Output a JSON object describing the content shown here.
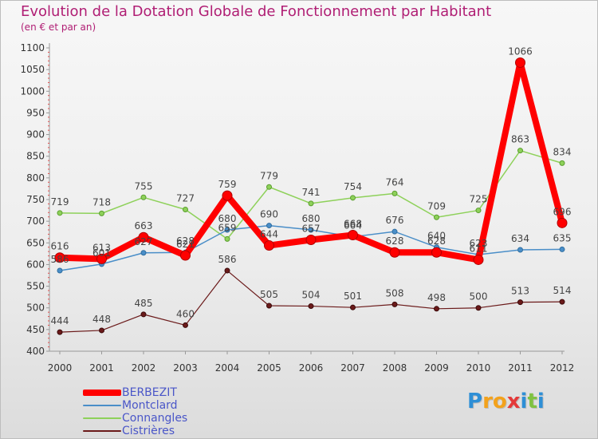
{
  "title": "Evolution de la Dotation Globale de Fonctionnement par Habitant",
  "subtitle": "(en € et par an)",
  "brand": {
    "text": "Proxiti",
    "letters": [
      {
        "ch": "P",
        "color": "#2e8fd6"
      },
      {
        "ch": "r",
        "color": "#f3a21c"
      },
      {
        "ch": "o",
        "color": "#f3a21c"
      },
      {
        "ch": "x",
        "color": "#e43a3a"
      },
      {
        "ch": "i",
        "color": "#2e8fd6"
      },
      {
        "ch": "t",
        "color": "#7fc241"
      },
      {
        "ch": "i",
        "color": "#2e8fd6"
      }
    ]
  },
  "chart_data": {
    "type": "line",
    "x": [
      "2000",
      "2001",
      "2002",
      "2003",
      "2004",
      "2005",
      "2006",
      "2007",
      "2008",
      "2009",
      "2010",
      "2011",
      "2012"
    ],
    "ylim": [
      400,
      1100
    ],
    "yticks": [
      400,
      450,
      500,
      550,
      600,
      650,
      700,
      750,
      800,
      850,
      900,
      950,
      1000,
      1050,
      1100
    ],
    "grid": false,
    "legend": "bottom-left",
    "series": [
      {
        "name": "BERBEZIT",
        "color": "#ff0000",
        "values": [
          616,
          613,
          663,
          621,
          759,
          644,
          657,
          668,
          628,
          628,
          611,
          1066,
          696
        ]
      },
      {
        "name": "Montclard",
        "color": "#4a8ec8",
        "values": [
          586,
          601,
          627,
          628,
          680,
          690,
          680,
          664,
          676,
          640,
          623,
          634,
          635
        ]
      },
      {
        "name": "Connangles",
        "color": "#8ed15a",
        "values": [
          719,
          718,
          755,
          727,
          659,
          779,
          741,
          754,
          764,
          709,
          725,
          863,
          834
        ]
      },
      {
        "name": "Cistrières",
        "color": "#6b1a1a",
        "values": [
          444,
          448,
          485,
          460,
          586,
          505,
          504,
          501,
          508,
          498,
          500,
          513,
          514
        ]
      }
    ],
    "data_labels": [
      [
        "616",
        "613",
        "663",
        "621",
        "759",
        "644",
        "657",
        "668",
        "628",
        "628",
        "611",
        "1066",
        "696"
      ],
      [
        "586",
        "601",
        "627",
        "628",
        "680",
        "690",
        "680",
        "664",
        "676",
        "640",
        "623",
        "634",
        "635"
      ],
      [
        "719",
        "718",
        "755",
        "727",
        "659",
        "779",
        "741",
        "754",
        "764",
        "709",
        "725",
        "863",
        "834"
      ],
      [
        "444",
        "448",
        "485",
        "460",
        "586",
        "505",
        "504",
        "501",
        "508",
        "498",
        "500",
        "513",
        "514"
      ]
    ]
  }
}
